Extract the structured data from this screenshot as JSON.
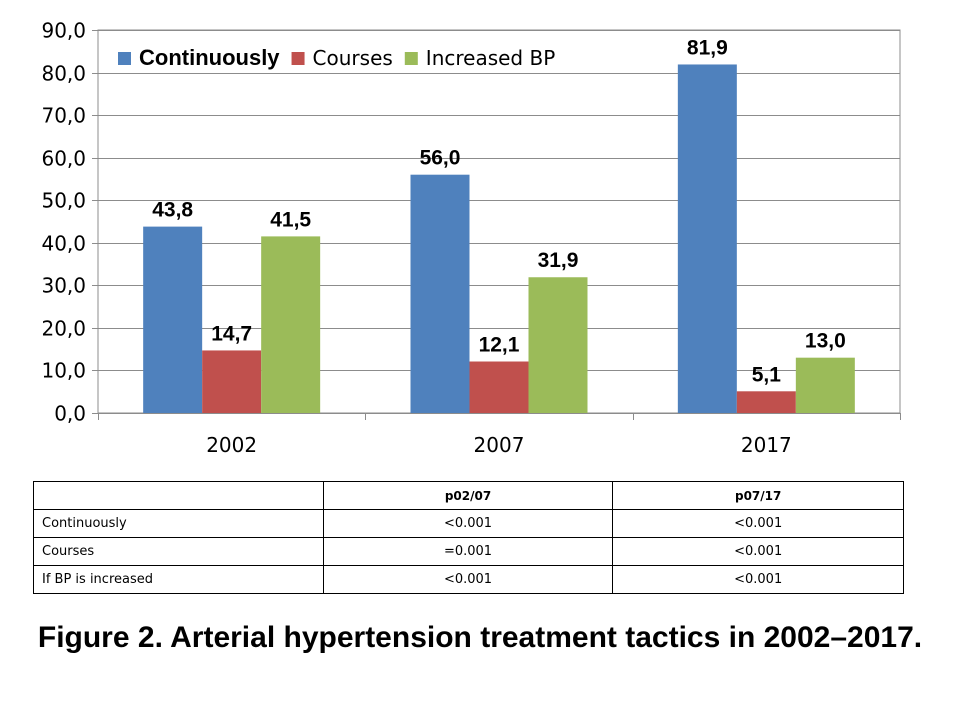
{
  "chart_data": {
    "type": "bar",
    "categories": [
      "2002",
      "2007",
      "2017"
    ],
    "series": [
      {
        "name": "Continuously",
        "values": [
          43.8,
          56.0,
          81.9
        ],
        "labels": [
          "43,8",
          "56,0",
          "81,9"
        ],
        "color": "#4f81bd"
      },
      {
        "name": "Courses",
        "values": [
          14.7,
          12.1,
          5.1
        ],
        "labels": [
          "14,7",
          "12,1",
          "5,1"
        ],
        "color": "#c0504d"
      },
      {
        "name": "Increased BP",
        "values": [
          41.5,
          31.9,
          13.0
        ],
        "labels": [
          "41,5",
          "31,9",
          "13,0"
        ],
        "color": "#9bbb59"
      }
    ],
    "ylim": [
      0,
      90
    ],
    "yticks": [
      0,
      10,
      20,
      30,
      40,
      50,
      60,
      70,
      80,
      90
    ],
    "ytick_labels": [
      "0,0",
      "10,0",
      "20,0",
      "30,0",
      "40,0",
      "50,0",
      "60,0",
      "70,0",
      "80,0",
      "90,0"
    ],
    "grid": true,
    "legend": "top-left",
    "xlabel": "",
    "ylabel": ""
  },
  "table": {
    "headers": [
      "",
      "p02/07",
      "p07/17"
    ],
    "rows": [
      [
        "Continuously",
        "<0.001",
        "<0.001"
      ],
      [
        "Courses",
        "=0.001",
        "<0.001"
      ],
      [
        "If BP is increased",
        "<0.001",
        "<0.001"
      ]
    ]
  },
  "caption": "Figure 2. Arterial hypertension treatment tactics in 2002–2017."
}
